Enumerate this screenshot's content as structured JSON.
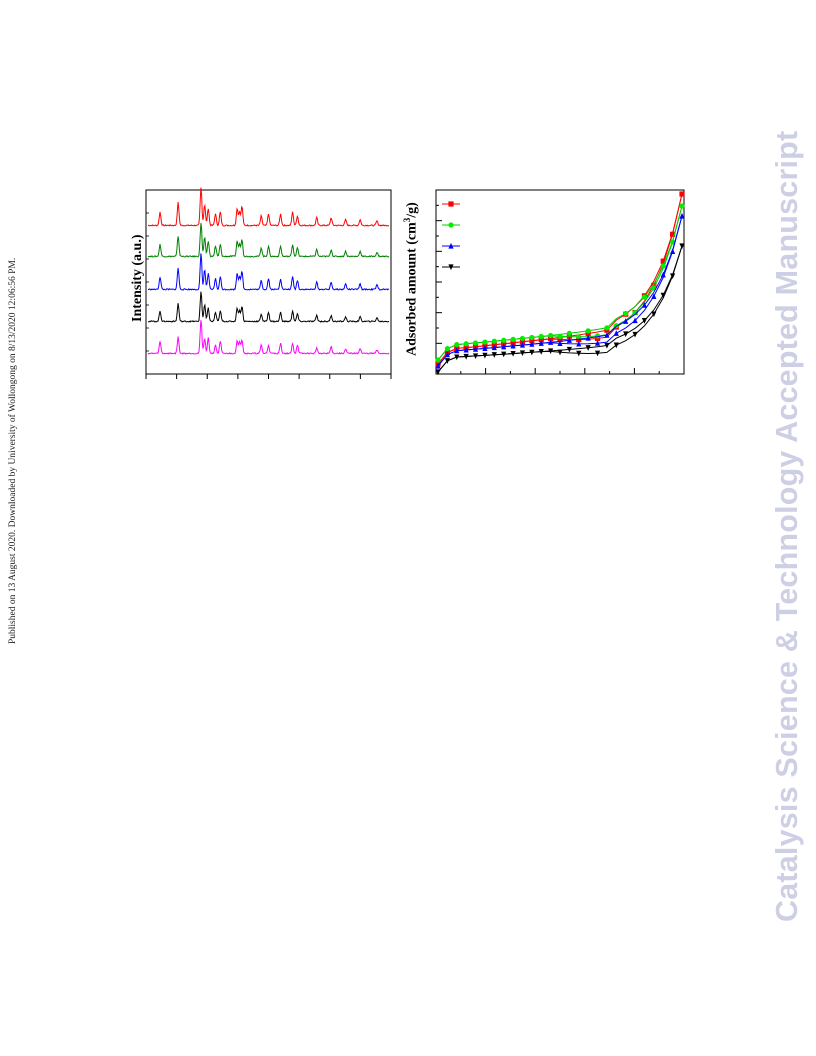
{
  "sidebar": {
    "publication_note": "Published on 13 August 2020. Downloaded by University of Wollongong on 8/13/2020 12:06:56 PM."
  },
  "watermark": {
    "text": "Catalysis Science & Technology Accepted Manuscript",
    "color": "#cdd0e4"
  },
  "figures": {
    "xrd": {
      "ylabel": "Intensity (a.u.)",
      "colors": [
        "#ff0000",
        "#007f00",
        "#0000ff",
        "#000000",
        "#ff00ff"
      ]
    },
    "isotherm": {
      "ylabel_main": "Adsorbed amount (cm",
      "ylabel_sup": "3",
      "ylabel_end": "/g)",
      "legend_markers": [
        {
          "shape": "square",
          "color": "#ff0000"
        },
        {
          "shape": "circle",
          "color": "#00ee00"
        },
        {
          "shape": "triangle-up",
          "color": "#0000ff"
        },
        {
          "shape": "triangle-down",
          "color": "#000000"
        }
      ]
    }
  },
  "chart_data": [
    {
      "type": "line",
      "title": "",
      "xlabel": "",
      "ylabel": "Intensity (a.u.)",
      "series_count": 5,
      "series_colors": [
        "#ff0000",
        "#007f00",
        "#0000ff",
        "#000000",
        "#ff00ff"
      ],
      "peak_positions_relative": [
        0.05,
        0.125,
        0.22,
        0.235,
        0.25,
        0.28,
        0.3,
        0.37,
        0.38,
        0.39,
        0.47,
        0.5,
        0.55,
        0.6,
        0.62,
        0.7,
        0.76,
        0.82,
        0.88,
        0.95
      ],
      "peak_heights_relative": [
        0.35,
        0.6,
        1.0,
        0.55,
        0.45,
        0.3,
        0.35,
        0.45,
        0.35,
        0.5,
        0.25,
        0.3,
        0.3,
        0.35,
        0.25,
        0.2,
        0.2,
        0.15,
        0.15,
        0.12
      ],
      "grid": false,
      "legend": "none"
    },
    {
      "type": "line",
      "title": "",
      "xlabel": "",
      "ylabel": "Adsorbed amount (cm3/g)",
      "series_count": 4,
      "series": [
        {
          "marker": "square",
          "color": "#ff0000"
        },
        {
          "marker": "circle",
          "color": "#00ee00"
        },
        {
          "marker": "triangle-up",
          "color": "#0000ff"
        },
        {
          "marker": "triangle-down",
          "color": "#000000"
        }
      ],
      "grid": false,
      "legend": "top-left"
    }
  ]
}
